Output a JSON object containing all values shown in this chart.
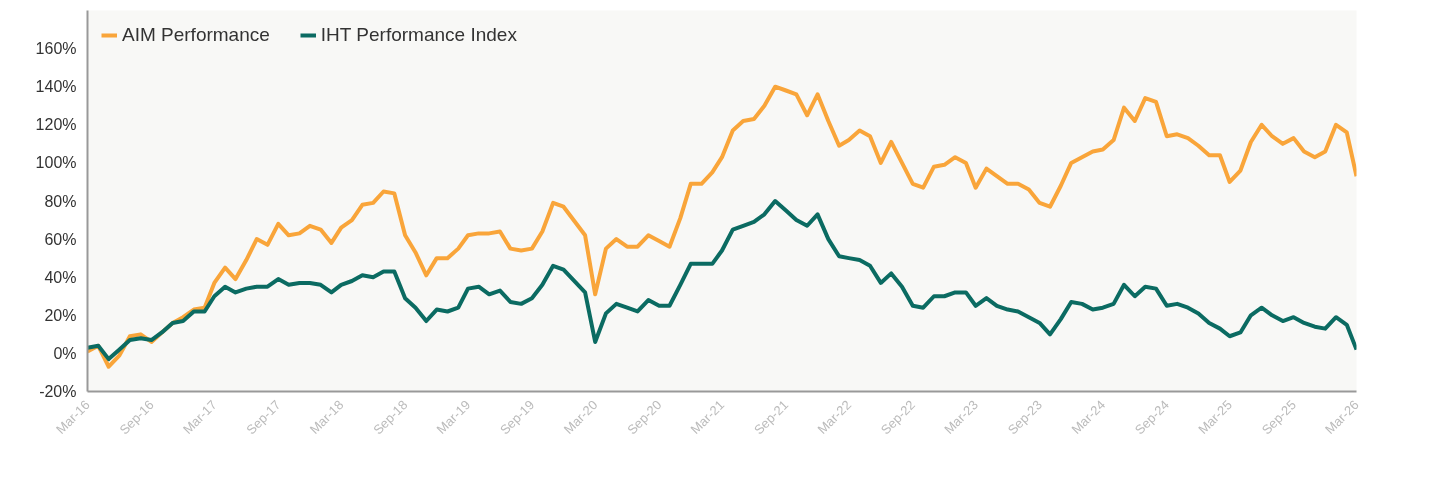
{
  "chart_data": {
    "type": "line",
    "x": [
      "2016-03",
      "2016-04",
      "2016-05",
      "2016-06",
      "2016-07",
      "2016-08",
      "2016-09",
      "2016-10",
      "2016-11",
      "2016-12",
      "2017-01",
      "2017-02",
      "2017-03",
      "2017-04",
      "2017-05",
      "2017-06",
      "2017-07",
      "2017-08",
      "2017-09",
      "2017-10",
      "2017-11",
      "2017-12",
      "2018-01",
      "2018-02",
      "2018-03",
      "2018-04",
      "2018-05",
      "2018-06",
      "2018-07",
      "2018-08",
      "2018-09",
      "2018-10",
      "2018-11",
      "2018-12",
      "2019-01",
      "2019-02",
      "2019-03",
      "2019-04",
      "2019-05",
      "2019-06",
      "2019-07",
      "2019-08",
      "2019-09",
      "2019-10",
      "2019-11",
      "2019-12",
      "2020-02",
      "2020-03",
      "2020-04",
      "2020-05",
      "2020-06",
      "2020-07",
      "2020-08",
      "2020-09",
      "2020-10",
      "2020-11",
      "2020-12",
      "2021-01",
      "2021-02",
      "2021-03",
      "2021-04",
      "2021-05",
      "2021-06",
      "2021-07",
      "2021-08",
      "2021-09",
      "2021-10",
      "2021-11",
      "2021-12",
      "2022-01",
      "2022-02",
      "2022-03",
      "2022-04",
      "2022-05",
      "2022-06",
      "2022-07",
      "2022-08",
      "2022-09",
      "2022-10",
      "2022-11",
      "2022-12",
      "2023-01",
      "2023-02",
      "2023-03",
      "2023-04",
      "2023-05",
      "2023-06",
      "2023-07",
      "2023-08",
      "2023-09",
      "2023-10",
      "2023-11",
      "2023-12",
      "2024-01",
      "2024-02",
      "2024-03",
      "2024-04",
      "2024-05",
      "2024-06",
      "2024-07",
      "2024-08",
      "2024-09",
      "2024-10",
      "2024-11",
      "2024-12",
      "2025-01",
      "2025-02",
      "2025-03",
      "2025-04",
      "2025-05",
      "2025-06",
      "2025-07",
      "2025-08",
      "2025-09",
      "2025-10",
      "2025-11",
      "2025-12",
      "2026-01",
      "2026-02",
      "2026-03"
    ],
    "series": [
      {
        "name": "AIM Performance",
        "color": "#f9a53a",
        "values": [
          1,
          4,
          -7,
          -1,
          9,
          10,
          6,
          11,
          16,
          19,
          23,
          24,
          37,
          45,
          39,
          49,
          60,
          57,
          68,
          62,
          63,
          67,
          65,
          58,
          66,
          70,
          78,
          79,
          85,
          84,
          62,
          53,
          41,
          50,
          50,
          55,
          62,
          63,
          63,
          64,
          55,
          54,
          55,
          64,
          79,
          77,
          62,
          31,
          55,
          60,
          56,
          56,
          62,
          59,
          56,
          71,
          89,
          89,
          95,
          103,
          117,
          122,
          123,
          130,
          140,
          138,
          136,
          125,
          136,
          122,
          109,
          112,
          117,
          114,
          100,
          111,
          100,
          89,
          87,
          98,
          99,
          103,
          100,
          87,
          97,
          93,
          89,
          89,
          86,
          79,
          77,
          88,
          100,
          103,
          106,
          107,
          112,
          129,
          122,
          134,
          132,
          114,
          115,
          113,
          109,
          104,
          104,
          90,
          96,
          111,
          120,
          114,
          110,
          113,
          106,
          103,
          106,
          120,
          116,
          93
        ]
      },
      {
        "name": "IHT Performance Index",
        "color": "#0b6b62",
        "values": [
          3,
          4,
          -3,
          2,
          7,
          8,
          7,
          11,
          16,
          17,
          22,
          22,
          30,
          35,
          32,
          34,
          35,
          35,
          39,
          36,
          37,
          37,
          36,
          32,
          36,
          38,
          41,
          40,
          43,
          43,
          29,
          24,
          17,
          23,
          22,
          24,
          34,
          35,
          31,
          33,
          27,
          26,
          29,
          36,
          46,
          44,
          32,
          6,
          21,
          26,
          24,
          22,
          28,
          25,
          25,
          36,
          47,
          47,
          47,
          54,
          65,
          67,
          69,
          73,
          80,
          75,
          70,
          67,
          73,
          60,
          51,
          50,
          49,
          46,
          37,
          42,
          35,
          25,
          24,
          30,
          30,
          32,
          32,
          25,
          29,
          25,
          23,
          22,
          19,
          16,
          10,
          18,
          27,
          26,
          23,
          24,
          26,
          36,
          30,
          35,
          34,
          25,
          26,
          24,
          21,
          16,
          13,
          9,
          11,
          20,
          24,
          20,
          17,
          19,
          16,
          14,
          13,
          19,
          15,
          2
        ]
      }
    ],
    "xlim": [
      "2016-03",
      "2026-03"
    ],
    "xticks": [
      {
        "value": "2016-03",
        "label": "Mar-16"
      },
      {
        "value": "2016-09",
        "label": "Sep-16"
      },
      {
        "value": "2017-03",
        "label": "Mar-17"
      },
      {
        "value": "2017-09",
        "label": "Sep-17"
      },
      {
        "value": "2018-03",
        "label": "Mar-18"
      },
      {
        "value": "2018-09",
        "label": "Sep-18"
      },
      {
        "value": "2019-03",
        "label": "Mar-19"
      },
      {
        "value": "2019-09",
        "label": "Sep-19"
      },
      {
        "value": "2020-03",
        "label": "Mar-20"
      },
      {
        "value": "2020-09",
        "label": "Sep-20"
      },
      {
        "value": "2021-03",
        "label": "Mar-21"
      },
      {
        "value": "2021-09",
        "label": "Sep-21"
      },
      {
        "value": "2022-03",
        "label": "Mar-22"
      },
      {
        "value": "2022-09",
        "label": "Sep-22"
      },
      {
        "value": "2023-03",
        "label": "Mar-23"
      },
      {
        "value": "2023-09",
        "label": "Sep-23"
      },
      {
        "value": "2024-03",
        "label": "Mar-24"
      },
      {
        "value": "2024-09",
        "label": "Sep-24"
      },
      {
        "value": "2025-03",
        "label": "Mar-25"
      },
      {
        "value": "2025-09",
        "label": "Sep-25"
      },
      {
        "value": "2026-03",
        "label": "Mar-26"
      }
    ],
    "ylim": [
      -20,
      180
    ],
    "yticks": [
      {
        "value": -20,
        "label": "-20%"
      },
      {
        "value": 0,
        "label": "0%"
      },
      {
        "value": 20,
        "label": "20%"
      },
      {
        "value": 40,
        "label": "40%"
      },
      {
        "value": 60,
        "label": "60%"
      },
      {
        "value": 80,
        "label": "80%"
      },
      {
        "value": 100,
        "label": "100%"
      },
      {
        "value": 120,
        "label": "120%"
      },
      {
        "value": 140,
        "label": "140%"
      },
      {
        "value": 160,
        "label": "160%"
      }
    ],
    "grid": false,
    "legend": "top left",
    "marker": "none",
    "line_style": "solid"
  }
}
